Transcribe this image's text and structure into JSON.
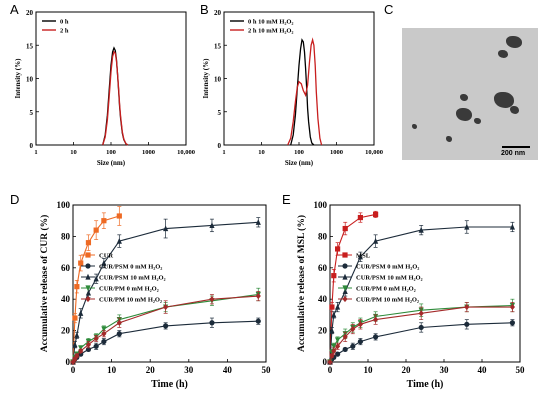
{
  "labels": {
    "A": "A",
    "B": "B",
    "C": "C",
    "D": "D",
    "E": "E"
  },
  "tem": {
    "scale_bar": "200 nm"
  },
  "colors": {
    "black": "#000000",
    "red": "#c81e1e",
    "orange": "#ee6a24",
    "blue_black": "#1c2b3a",
    "green": "#2e8b3a",
    "dark_red": "#a42a2a"
  },
  "chart_data": [
    {
      "id": "A",
      "type": "line",
      "xlabel": "Size (nm)",
      "ylabel": "Intensity (%)",
      "xscale": "log",
      "xlim": [
        1,
        10000
      ],
      "ylim": [
        0,
        20
      ],
      "xticks": [
        1,
        10,
        100,
        1000,
        10000
      ],
      "xtick_labels": [
        "1",
        "10",
        "100",
        "1000",
        "10,000"
      ],
      "yticks": [
        0,
        5,
        10,
        15,
        20
      ],
      "legend": "top-left",
      "series": [
        {
          "name": "0 h",
          "color": "#000000",
          "x": [
            60,
            70,
            80,
            90,
            100,
            110,
            120,
            130,
            140,
            150,
            160,
            170,
            180,
            200,
            220,
            250,
            280
          ],
          "y": [
            0,
            1.5,
            4.5,
            8.5,
            12,
            14,
            14.6,
            14.2,
            12.8,
            10.5,
            8,
            5.8,
            4,
            1.8,
            0.8,
            0.2,
            0
          ]
        },
        {
          "name": "2 h",
          "color": "#c81e1e",
          "x": [
            60,
            70,
            80,
            90,
            100,
            110,
            120,
            130,
            140,
            150,
            160,
            170,
            180,
            200,
            220,
            250,
            280
          ],
          "y": [
            0,
            1.2,
            3.8,
            7.5,
            11,
            13.3,
            14.0,
            13.8,
            12.6,
            10.6,
            8.3,
            6.1,
            4.3,
            2,
            0.9,
            0.2,
            0
          ]
        }
      ]
    },
    {
      "id": "B",
      "type": "line",
      "xlabel": "Size (nm)",
      "ylabel": "Intensity (%)",
      "xscale": "log",
      "xlim": [
        1,
        10000
      ],
      "ylim": [
        0,
        20
      ],
      "xticks": [
        1,
        10,
        100,
        1000,
        10000
      ],
      "xtick_labels": [
        "1",
        "10",
        "100",
        "1000",
        "10,000"
      ],
      "yticks": [
        0,
        5,
        10,
        15,
        20
      ],
      "legend": "top-left",
      "series": [
        {
          "name": "0 h 10 mM H₂O₂",
          "color": "#000000",
          "x": [
            60,
            70,
            80,
            90,
            100,
            110,
            120,
            130,
            140,
            150,
            160,
            170,
            180,
            200,
            220,
            250
          ],
          "y": [
            0,
            1.5,
            4.5,
            8.5,
            12,
            14.5,
            15.8,
            15.5,
            14,
            11.5,
            8.5,
            5.5,
            3.5,
            1.2,
            0.3,
            0
          ]
        },
        {
          "name": "2 h 10 mM H₂O₂",
          "color": "#c81e1e",
          "x": [
            50,
            60,
            70,
            80,
            90,
            100,
            115,
            130,
            150,
            170,
            190,
            210,
            230,
            250,
            270,
            290,
            320,
            360,
            400
          ],
          "y": [
            0,
            1,
            3.5,
            6.5,
            8.7,
            9.5,
            9.2,
            8.2,
            7.5,
            9,
            12.5,
            15,
            15.8,
            15,
            12,
            8,
            4,
            1,
            0
          ]
        }
      ]
    },
    {
      "id": "D",
      "type": "line",
      "xlabel": "Time (h)",
      "ylabel": "Accumulative release of CUR (%)",
      "xlim": [
        0,
        50
      ],
      "ylim": [
        0,
        100
      ],
      "xticks": [
        0,
        10,
        20,
        30,
        40,
        50
      ],
      "yticks": [
        0,
        20,
        40,
        60,
        80,
        100
      ],
      "legend": "center-left",
      "series": [
        {
          "name": "CUR",
          "color": "#ee6a24",
          "marker": "square",
          "x": [
            0,
            0.5,
            1,
            2,
            4,
            6,
            8,
            12
          ],
          "y": [
            0,
            28,
            48,
            63,
            76,
            84,
            90,
            93
          ],
          "err": [
            0,
            3,
            4,
            5,
            5,
            6,
            5,
            6
          ]
        },
        {
          "name": "CUR/PSM 0 mM H₂O₂",
          "color": "#1c2b3a",
          "marker": "circle",
          "x": [
            0,
            0.5,
            1,
            2,
            4,
            6,
            8,
            12,
            24,
            36,
            48
          ],
          "y": [
            0,
            2,
            3,
            5,
            8,
            10,
            13,
            18,
            23,
            25,
            26
          ],
          "err": [
            0,
            1,
            1,
            1,
            1,
            2,
            2,
            2,
            2,
            3,
            2
          ]
        },
        {
          "name": "CUR/PSM 10 mM H₂O₂",
          "color": "#1c2b3a",
          "marker": "triangle",
          "x": [
            0,
            0.5,
            1,
            2,
            4,
            6,
            8,
            12,
            24,
            36,
            48
          ],
          "y": [
            0,
            11,
            17,
            31,
            44,
            53,
            63,
            77,
            85,
            87,
            89
          ],
          "err": [
            0,
            2,
            2,
            3,
            3,
            3,
            3,
            4,
            6,
            4,
            3
          ]
        },
        {
          "name": "CUR/PM 0 mM H₂O₂",
          "color": "#2e8b3a",
          "marker": "triangle-down",
          "x": [
            0,
            0.5,
            1,
            2,
            4,
            6,
            8,
            12,
            24,
            36,
            48
          ],
          "y": [
            0,
            3,
            5,
            9,
            13,
            16,
            21,
            27,
            35,
            39,
            43
          ],
          "err": [
            0,
            1,
            1,
            1,
            2,
            2,
            2,
            3,
            3,
            3,
            4
          ]
        },
        {
          "name": "CUR/PM 10 mM H₂O₂",
          "color": "#a42a2a",
          "marker": "diamond",
          "x": [
            0,
            0.5,
            1,
            2,
            4,
            6,
            8,
            12,
            24,
            36,
            48
          ],
          "y": [
            0,
            2,
            4,
            7,
            11,
            15,
            18,
            25,
            35,
            40,
            42
          ],
          "err": [
            0,
            1,
            1,
            1,
            2,
            2,
            2,
            3,
            4,
            3,
            3
          ]
        }
      ]
    },
    {
      "id": "E",
      "type": "line",
      "xlabel": "Time (h)",
      "ylabel": "Accumulative release of MSL (%)",
      "xlim": [
        0,
        50
      ],
      "ylim": [
        0,
        100
      ],
      "xticks": [
        0,
        10,
        20,
        30,
        40,
        50
      ],
      "yticks": [
        0,
        20,
        40,
        60,
        80,
        100
      ],
      "legend": "center-left",
      "series": [
        {
          "name": "MSL",
          "color": "#c81e1e",
          "marker": "square",
          "x": [
            0,
            0.5,
            1,
            2,
            4,
            8,
            12
          ],
          "y": [
            0,
            35,
            55,
            72,
            85,
            92,
            94
          ],
          "err": [
            0,
            3,
            4,
            4,
            4,
            3,
            2
          ]
        },
        {
          "name": "CUR/PSM 0 mM H₂O₂",
          "color": "#1c2b3a",
          "marker": "circle",
          "x": [
            0,
            0.5,
            1,
            2,
            4,
            6,
            8,
            12,
            24,
            36,
            48
          ],
          "y": [
            0,
            2,
            3,
            5,
            8,
            10,
            13,
            16,
            22,
            24,
            25
          ],
          "err": [
            0,
            1,
            1,
            1,
            1,
            2,
            2,
            2,
            3,
            3,
            2
          ]
        },
        {
          "name": "CUR/PSM 10 mM H₂O₂",
          "color": "#1c2b3a",
          "marker": "triangle",
          "x": [
            0,
            0.5,
            1,
            2,
            4,
            8,
            12,
            24,
            36,
            48
          ],
          "y": [
            0,
            20,
            30,
            35,
            45,
            67,
            77,
            84,
            86,
            86
          ],
          "err": [
            0,
            2,
            2,
            3,
            3,
            3,
            4,
            3,
            4,
            3
          ]
        },
        {
          "name": "CUR/PM 0 mM H₂O₂",
          "color": "#2e8b3a",
          "marker": "triangle-down",
          "x": [
            0,
            0.5,
            1,
            2,
            4,
            6,
            8,
            12,
            24,
            36,
            48
          ],
          "y": [
            0,
            6,
            10,
            14,
            18,
            22,
            25,
            29,
            33,
            35,
            36
          ],
          "err": [
            0,
            2,
            2,
            2,
            3,
            3,
            3,
            3,
            4,
            3,
            4
          ]
        },
        {
          "name": "CUR/PM 10 mM H₂O₂",
          "color": "#a42a2a",
          "marker": "diamond",
          "x": [
            0,
            0.5,
            1,
            2,
            4,
            6,
            8,
            12,
            24,
            36,
            48
          ],
          "y": [
            0,
            4,
            7,
            10,
            16,
            21,
            24,
            27,
            31,
            35,
            35
          ],
          "err": [
            0,
            1,
            2,
            2,
            3,
            3,
            3,
            3,
            4,
            3,
            3
          ]
        }
      ]
    }
  ]
}
